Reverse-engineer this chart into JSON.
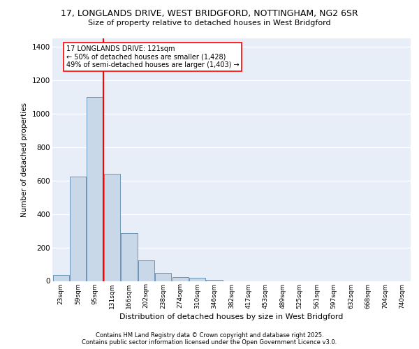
{
  "title_line1": "17, LONGLANDS DRIVE, WEST BRIDGFORD, NOTTINGHAM, NG2 6SR",
  "title_line2": "Size of property relative to detached houses in West Bridgford",
  "xlabel": "Distribution of detached houses by size in West Bridgford",
  "ylabel": "Number of detached properties",
  "categories": [
    "23sqm",
    "59sqm",
    "95sqm",
    "131sqm",
    "166sqm",
    "202sqm",
    "238sqm",
    "274sqm",
    "310sqm",
    "346sqm",
    "382sqm",
    "417sqm",
    "453sqm",
    "489sqm",
    "525sqm",
    "561sqm",
    "597sqm",
    "632sqm",
    "668sqm",
    "704sqm",
    "740sqm"
  ],
  "values": [
    35,
    622,
    1100,
    640,
    285,
    125,
    50,
    22,
    20,
    5,
    0,
    0,
    0,
    0,
    0,
    0,
    0,
    0,
    0,
    0,
    0
  ],
  "bar_color": "#c8d8e8",
  "bar_edge_color": "#5a8ab0",
  "bg_color": "#e8eef8",
  "grid_color": "#ffffff",
  "vline_x": 2.5,
  "vline_color": "red",
  "annotation_text": "17 LONGLANDS DRIVE: 121sqm\n← 50% of detached houses are smaller (1,428)\n49% of semi-detached houses are larger (1,403) →",
  "annotation_box_color": "white",
  "annotation_box_edge": "red",
  "ylim": [
    0,
    1450
  ],
  "yticks": [
    0,
    200,
    400,
    600,
    800,
    1000,
    1200,
    1400
  ],
  "footer_line1": "Contains HM Land Registry data © Crown copyright and database right 2025.",
  "footer_line2": "Contains public sector information licensed under the Open Government Licence v3.0."
}
